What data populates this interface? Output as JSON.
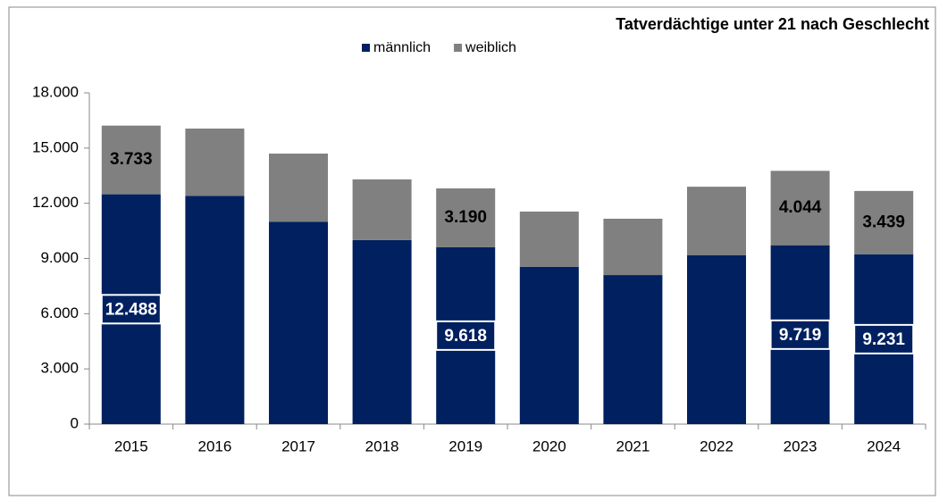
{
  "chart_data": {
    "type": "stacked_bar",
    "title": "Tatverdächtige unter 21 nach Geschlecht",
    "categories": [
      "2015",
      "2016",
      "2017",
      "2018",
      "2019",
      "2020",
      "2021",
      "2022",
      "2023",
      "2024"
    ],
    "series": [
      {
        "name": "männlich",
        "color": "#002060",
        "values": [
          12488,
          12400,
          11000,
          10000,
          9618,
          8550,
          8100,
          9170,
          9719,
          9231
        ],
        "value_labels": [
          "12.488",
          null,
          null,
          null,
          "9.618",
          null,
          null,
          null,
          "9.719",
          "9.231"
        ]
      },
      {
        "name": "weiblich",
        "color": "#808080",
        "values": [
          3733,
          3660,
          3700,
          3300,
          3190,
          3000,
          3060,
          3730,
          4044,
          3439
        ],
        "value_labels": [
          "3.733",
          null,
          null,
          null,
          "3.190",
          null,
          null,
          null,
          "4.044",
          "3.439"
        ]
      }
    ],
    "ylim": [
      0,
      18000
    ],
    "yticks": [
      0,
      {
        "value": 3000,
        "label": "3.000"
      },
      {
        "value": 6000,
        "label": "6.000"
      },
      {
        "value": 9000,
        "label": "9.000"
      },
      {
        "value": 12000,
        "label": "12.000"
      },
      {
        "value": 15000,
        "label": "15.000"
      },
      {
        "value": 18000,
        "label": "18.000"
      }
    ],
    "grid": false,
    "legend": "top"
  }
}
